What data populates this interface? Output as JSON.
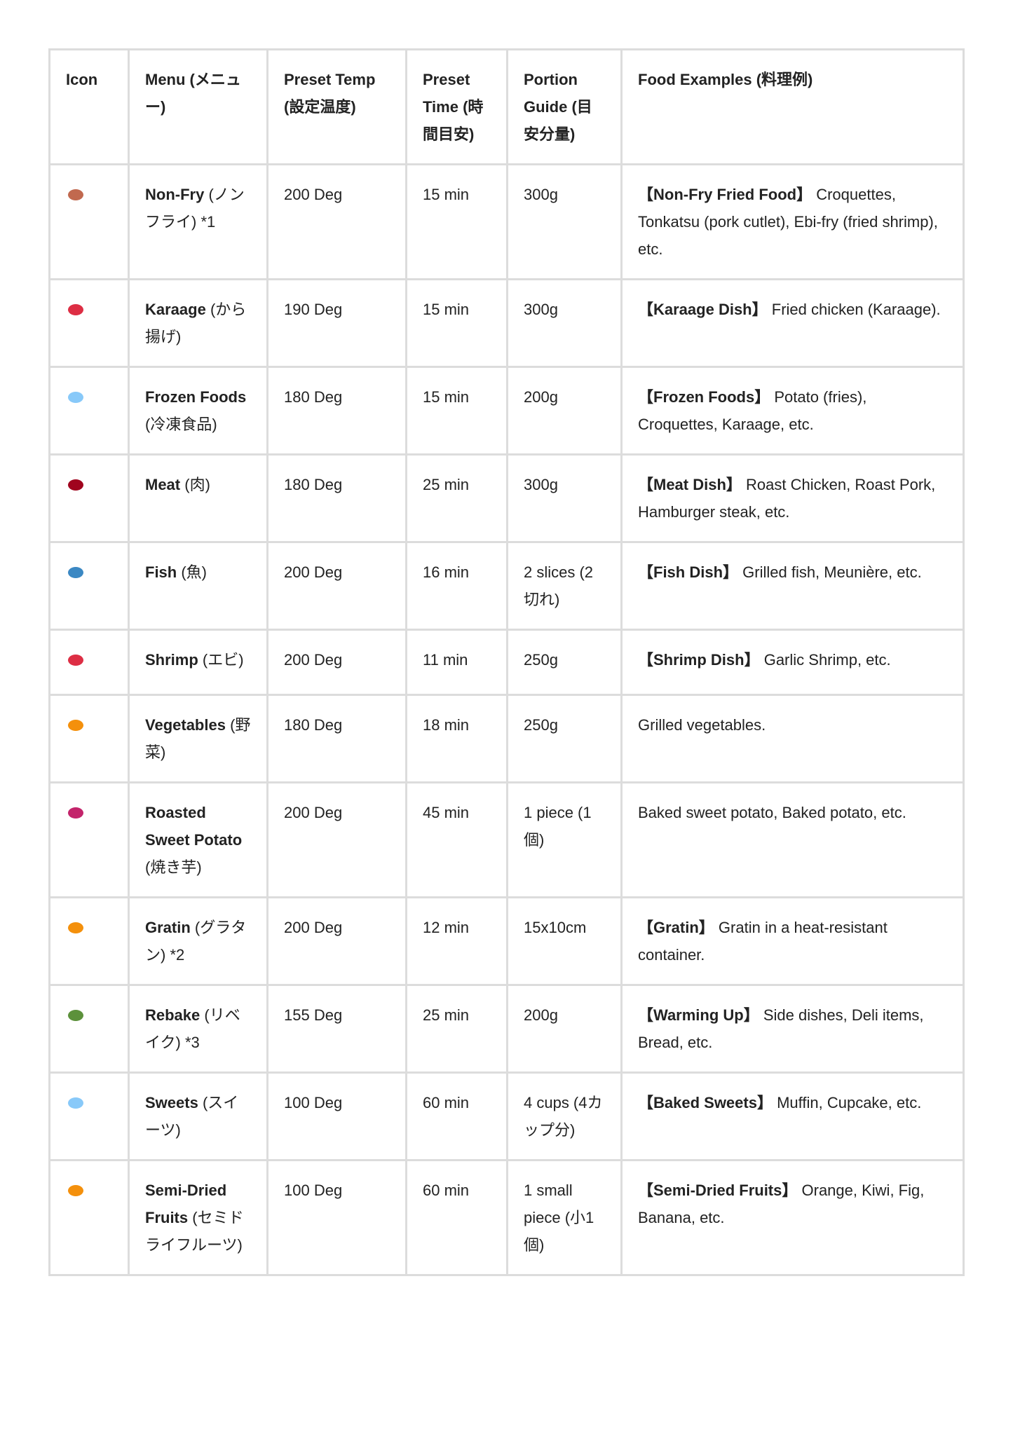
{
  "headers": [
    "Icon",
    "Menu (メニュー)",
    "Preset Temp (設定温度)",
    "Preset Time (時間目安)",
    "Portion Guide (目安分量)",
    "Food Examples (料理例)"
  ],
  "rows": [
    {
      "icon": "poultry-leg",
      "color": "#c1694f",
      "name": "Non-Fry",
      "jp": "(ノンフライ) *1",
      "temp": "200 Deg",
      "time": "15 min",
      "portion": "300g",
      "tag": "【Non-Fry Fried Food】",
      "examples": "Croquettes, Tonkatsu (pork cutlet), Ebi-fry (fried shrimp), etc."
    },
    {
      "icon": "chicken",
      "color": "#dd2e44",
      "name": "Karaage",
      "jp": "(から揚げ)",
      "temp": "190 Deg",
      "time": "15 min",
      "portion": "300g",
      "tag": "【Karaage Dish】",
      "examples": "Fried chicken (Karaage)."
    },
    {
      "icon": "snowflake",
      "color": "#88c9f9",
      "name": "Frozen Foods",
      "jp": "(冷凍食品)",
      "temp": "180 Deg",
      "time": "15 min",
      "portion": "200g",
      "tag": "【Frozen Foods】",
      "examples": "Potato (fries), Croquettes, Karaage, etc."
    },
    {
      "icon": "cut-of-meat",
      "color": "#a0041e",
      "name": "Meat",
      "jp": "(肉)",
      "temp": "180 Deg",
      "time": "25 min",
      "portion": "300g",
      "tag": "【Meat Dish】",
      "examples": "Roast Chicken, Roast Pork, Hamburger steak, etc."
    },
    {
      "icon": "fish",
      "color": "#3b88c3",
      "name": "Fish",
      "jp": "(魚)",
      "temp": "200 Deg",
      "time": "16 min",
      "portion": "2 slices (2切れ)",
      "tag": "【Fish Dish】",
      "examples": "Grilled fish, Meunière, etc."
    },
    {
      "icon": "shrimp",
      "color": "#dd2e44",
      "name": "Shrimp",
      "jp": "(エビ)",
      "temp": "200 Deg",
      "time": "11 min",
      "portion": "250g",
      "tag": "【Shrimp Dish】",
      "examples": "Garlic Shrimp, etc."
    },
    {
      "icon": "carrot",
      "color": "#f4900c",
      "name": "Vegetables",
      "jp": "(野菜)",
      "temp": "180 Deg",
      "time": "18 min",
      "portion": "250g",
      "tag": "",
      "examples": "Grilled vegetables."
    },
    {
      "icon": "roasted-sweet-potato",
      "color": "#c3246b",
      "name": "Roasted Sweet Potato",
      "jp": "(焼き芋)",
      "temp": "200 Deg",
      "time": "45 min",
      "portion": "1 piece (1個)",
      "tag": "",
      "examples": "Baked sweet potato, Baked potato, etc."
    },
    {
      "icon": "shallow-pan-of-food",
      "color": "#f4900c",
      "name": "Gratin",
      "jp": "(グラタン) *2",
      "temp": "200 Deg",
      "time": "12 min",
      "portion": "15x10cm",
      "tag": "【Gratin】",
      "examples": "Gratin in a heat-resistant container."
    },
    {
      "icon": "stew-pot",
      "color": "#5c913b",
      "name": "Rebake",
      "jp": "(リベイク) *3",
      "temp": "155 Deg",
      "time": "25 min",
      "portion": "200g",
      "tag": "【Warming Up】",
      "examples": "Side dishes, Deli items, Bread, etc."
    },
    {
      "icon": "cupcake",
      "color": "#88c9f9",
      "name": "Sweets",
      "jp": "(スイーツ)",
      "temp": "100 Deg",
      "time": "60 min",
      "portion": "4 cups (4カップ分)",
      "tag": "【Baked Sweets】",
      "examples": "Muffin, Cupcake, etc."
    },
    {
      "icon": "tangerine",
      "color": "#f4900c",
      "name": "Semi-Dried Fruits",
      "jp": "(セミドライフルーツ)",
      "temp": "100 Deg",
      "time": "60 min",
      "portion": "1 small piece (小1個)",
      "tag": "【Semi-Dried Fruits】",
      "examples": "Orange, Kiwi, Fig, Banana, etc."
    }
  ]
}
